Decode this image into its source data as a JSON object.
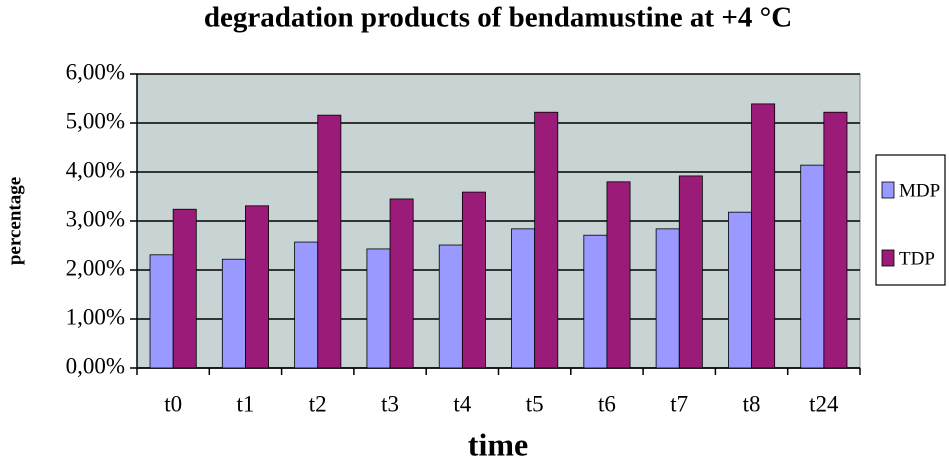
{
  "chart_data": {
    "type": "bar",
    "title": "degradation products of bendamustine at +4 °C",
    "x_label": "time",
    "y_label": "percentage",
    "categories": [
      "t0",
      "t1",
      "t2",
      "t3",
      "t4",
      "t5",
      "t6",
      "t7",
      "t8",
      "t24"
    ],
    "series": [
      {
        "name": "MDP",
        "color": "#9999ff",
        "values": [
          2.31,
          2.22,
          2.57,
          2.43,
          2.51,
          2.84,
          2.71,
          2.84,
          3.18,
          4.14
        ]
      },
      {
        "name": "TDP",
        "color": "#9a1b78",
        "values": [
          3.24,
          3.31,
          5.16,
          3.45,
          3.59,
          5.22,
          3.8,
          3.92,
          5.39,
          5.22
        ]
      }
    ],
    "ylim": [
      0,
      6
    ],
    "yticks": [
      {
        "value": 0,
        "label": "0,00%"
      },
      {
        "value": 1,
        "label": "1,00%"
      },
      {
        "value": 2,
        "label": "2,00%"
      },
      {
        "value": 3,
        "label": "3,00%"
      },
      {
        "value": 4,
        "label": "4,00%"
      },
      {
        "value": 5,
        "label": "5,00%"
      },
      {
        "value": 6,
        "label": "6,00%"
      }
    ],
    "grid": true,
    "legend": "right",
    "plot_background": "#c8d4d4"
  }
}
